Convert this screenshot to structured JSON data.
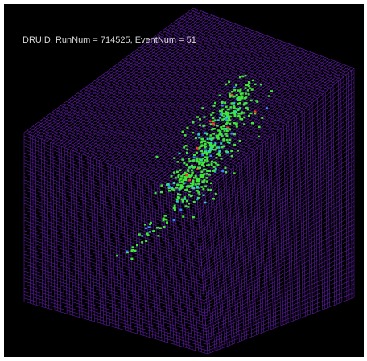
{
  "title": "DRUID, RunNum = 714525, EventNum = 51"
}
